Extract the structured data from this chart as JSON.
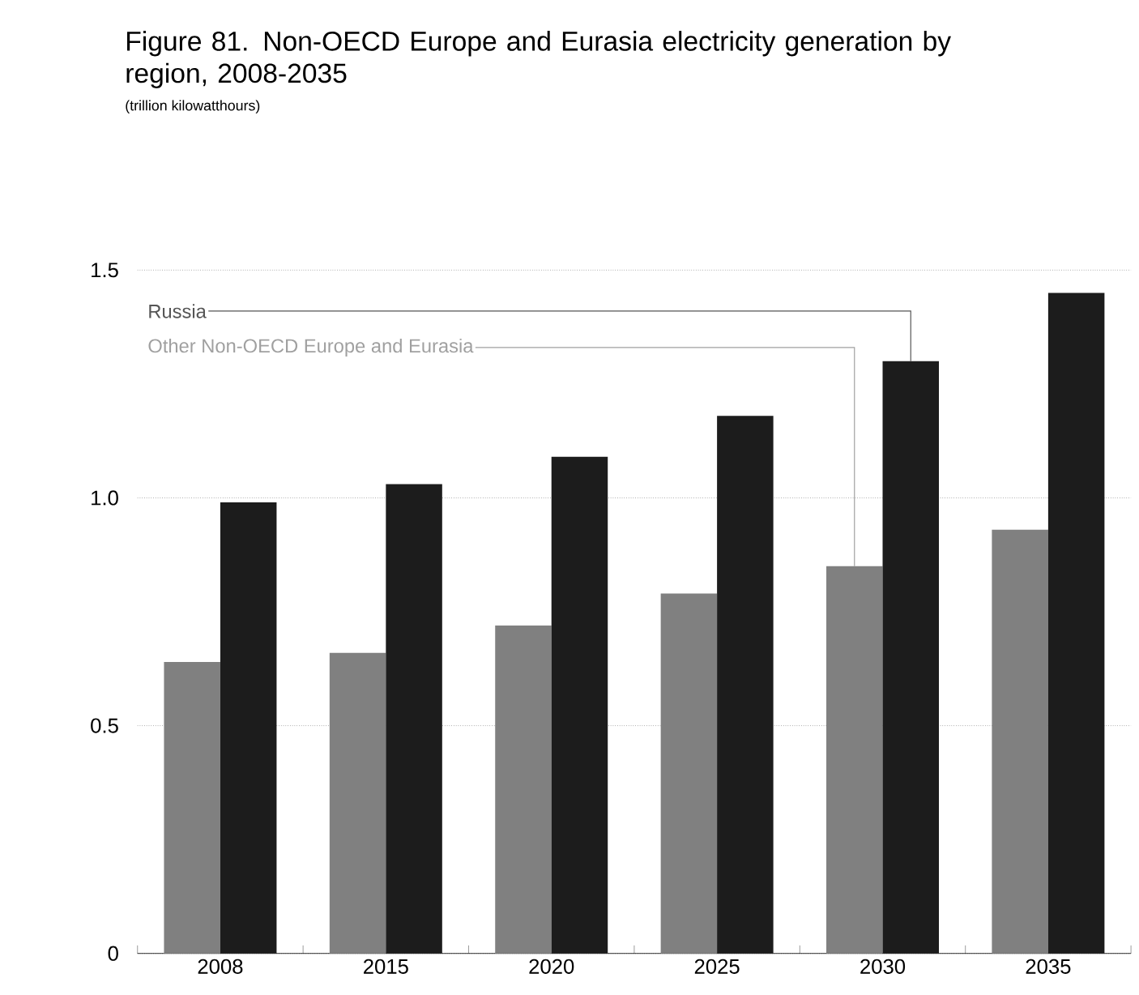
{
  "chart_data": {
    "type": "bar",
    "title": "Figure 81. Non-OECD Europe and Eurasia electricity generation by region, 2008-2035",
    "subtitle": "(trillion kilowatthours)",
    "categories": [
      "2008",
      "2015",
      "2020",
      "2025",
      "2030",
      "2035"
    ],
    "series": [
      {
        "name": "Other Non-OECD Europe and Eurasia",
        "color": "#808080",
        "values": [
          0.64,
          0.66,
          0.72,
          0.79,
          0.85,
          0.93
        ]
      },
      {
        "name": "Russia",
        "color": "#1c1c1c",
        "values": [
          0.99,
          1.03,
          1.09,
          1.18,
          1.3,
          1.45
        ]
      }
    ],
    "ylim": [
      0,
      1.5
    ],
    "yticks": [
      0,
      0.5,
      {
        "value": 1,
        "label": "1.0"
      },
      1.5
    ],
    "grid": "y"
  }
}
